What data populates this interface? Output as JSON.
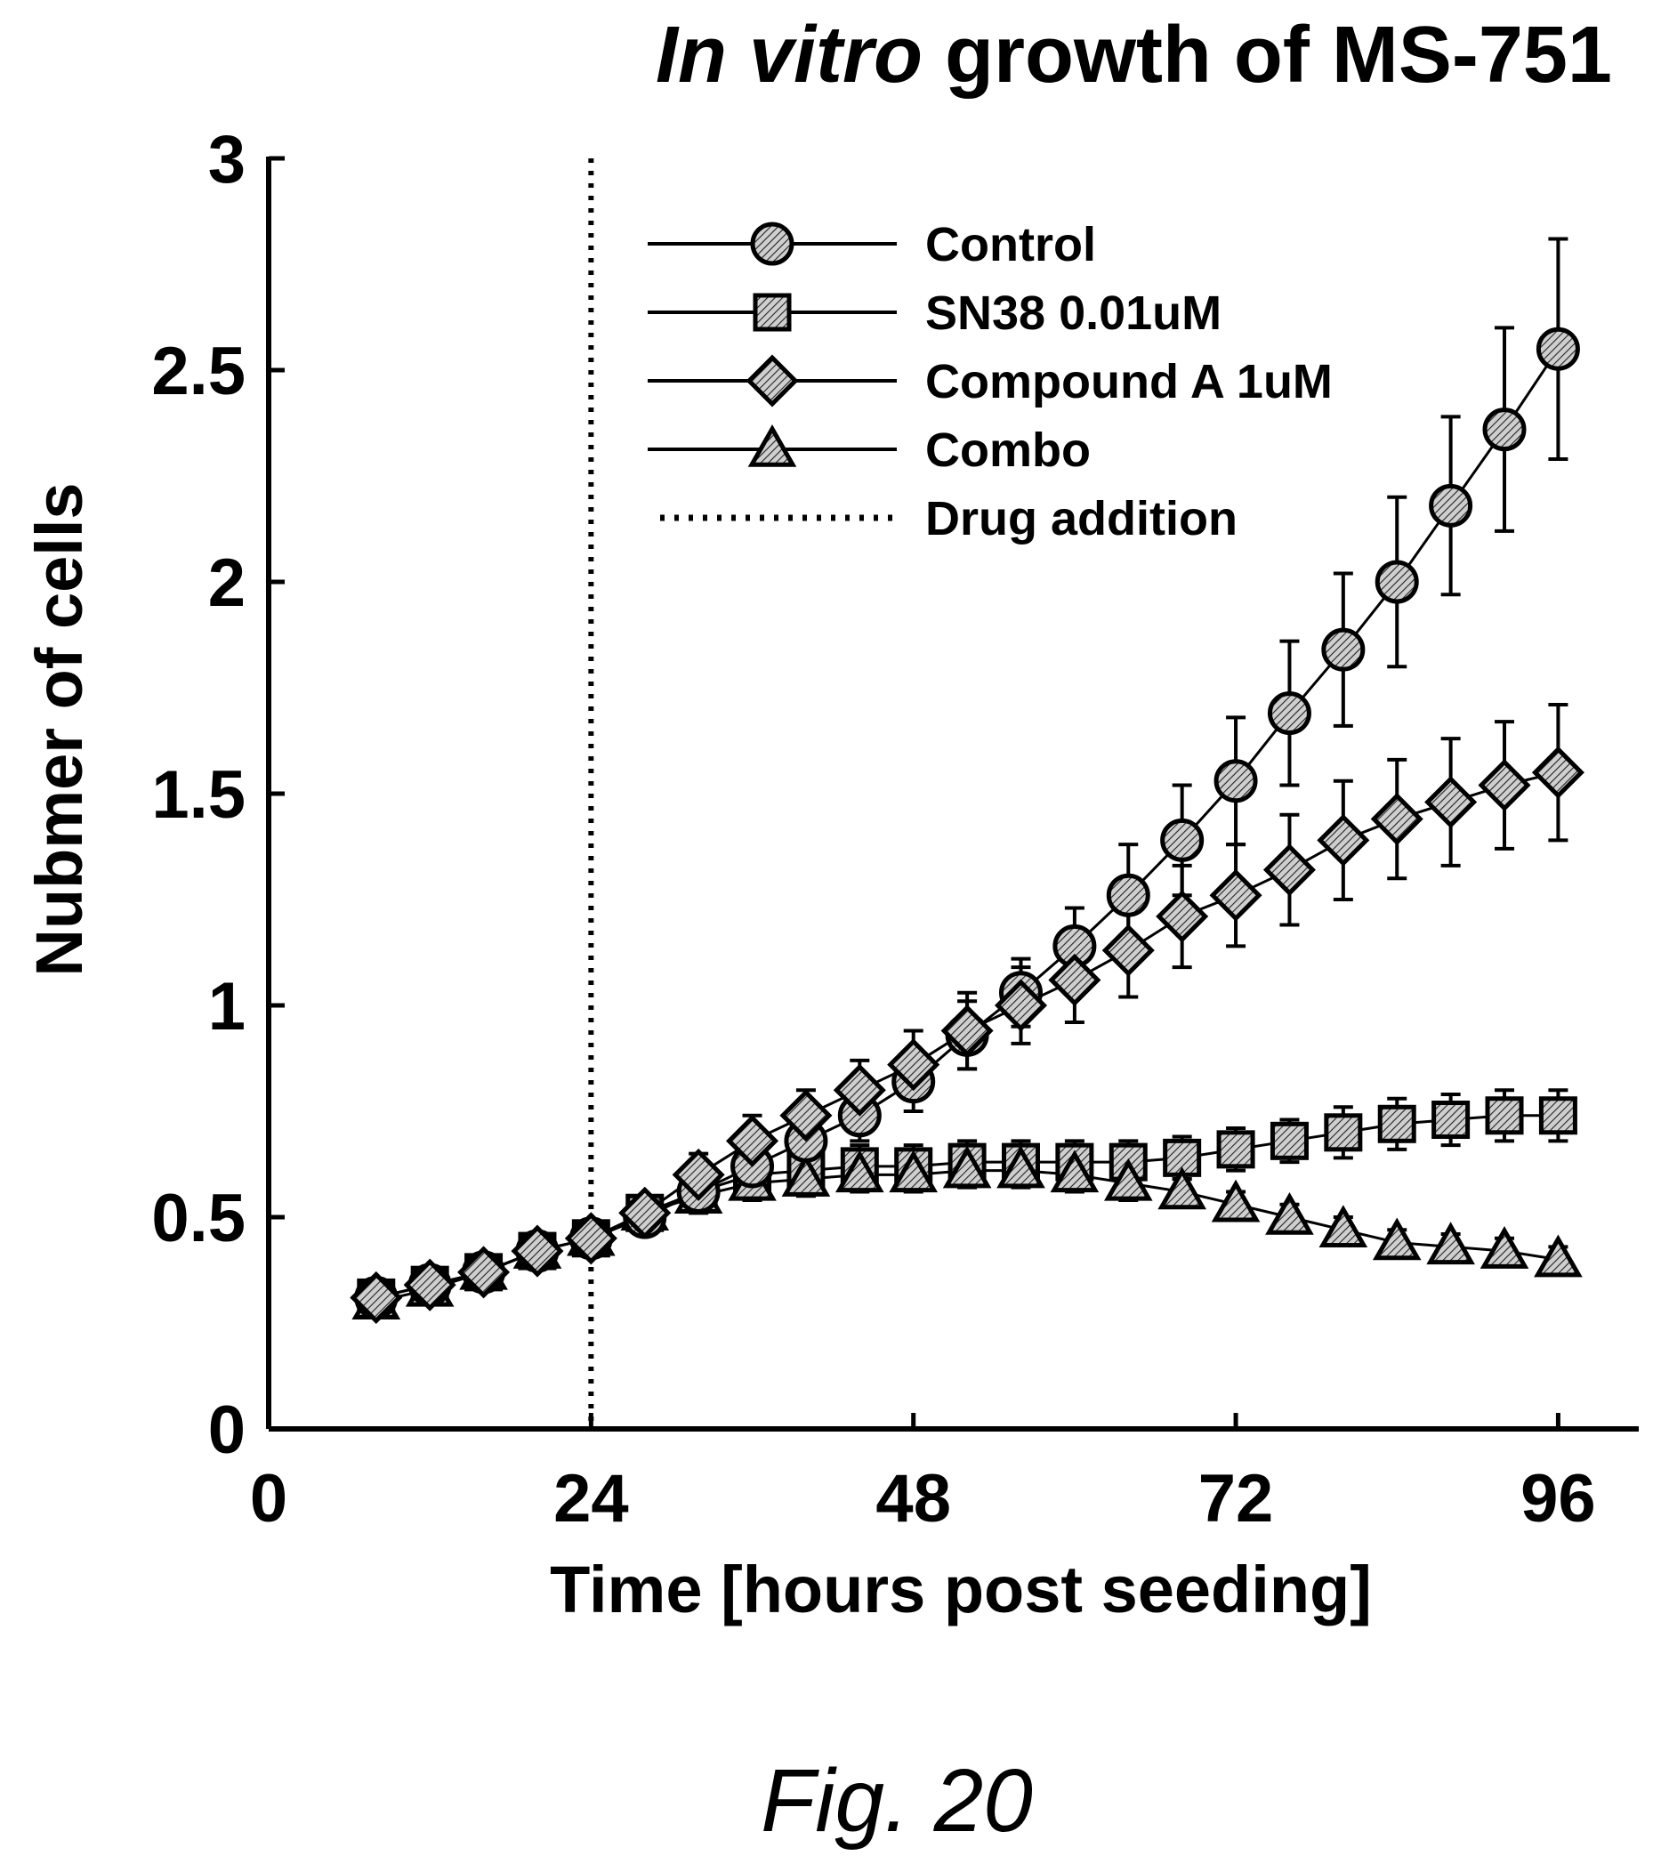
{
  "chart_data": {
    "type": "line",
    "title_italic": "In vitro",
    "title_rest": " growth of MS-751",
    "xlabel": "Time [hours post seeding]",
    "ylabel": "Nubmer of cells",
    "xlim": [
      0,
      102
    ],
    "ylim": [
      0,
      3
    ],
    "xticks": [
      0,
      24,
      48,
      72,
      96
    ],
    "yticks": [
      0,
      0.5,
      1,
      1.5,
      2,
      2.5,
      3
    ],
    "ytick_labels": [
      "0",
      "0.5",
      "1",
      "1.5",
      "2",
      "2.5",
      "3"
    ],
    "grid": false,
    "legend_position": "top-right",
    "x": [
      8,
      12,
      16,
      20,
      24,
      28,
      32,
      36,
      40,
      44,
      48,
      52,
      56,
      60,
      64,
      68,
      72,
      76,
      80,
      84,
      88,
      92,
      96
    ],
    "series": [
      {
        "name": "Control",
        "marker": "circle",
        "values": [
          0.31,
          0.34,
          0.37,
          0.42,
          0.45,
          0.5,
          0.56,
          0.62,
          0.68,
          0.74,
          0.82,
          0.93,
          1.03,
          1.14,
          1.26,
          1.39,
          1.53,
          1.69,
          1.84,
          2.0,
          2.18,
          2.36,
          2.55
        ],
        "errors": [
          0.02,
          0.02,
          0.02,
          0.03,
          0.03,
          0.04,
          0.05,
          0.05,
          0.06,
          0.06,
          0.07,
          0.08,
          0.08,
          0.09,
          0.12,
          0.13,
          0.15,
          0.17,
          0.18,
          0.2,
          0.21,
          0.24,
          0.26
        ]
      },
      {
        "name": "SN38 0.01uM",
        "marker": "square",
        "values": [
          0.31,
          0.34,
          0.37,
          0.42,
          0.45,
          0.51,
          0.56,
          0.6,
          0.61,
          0.62,
          0.62,
          0.63,
          0.63,
          0.63,
          0.63,
          0.64,
          0.66,
          0.68,
          0.7,
          0.72,
          0.73,
          0.74,
          0.74
        ],
        "errors": [
          0.02,
          0.02,
          0.02,
          0.03,
          0.03,
          0.04,
          0.04,
          0.05,
          0.05,
          0.05,
          0.05,
          0.05,
          0.05,
          0.05,
          0.05,
          0.05,
          0.05,
          0.05,
          0.06,
          0.06,
          0.06,
          0.06,
          0.06
        ]
      },
      {
        "name": "Compound A 1uM",
        "marker": "diamond",
        "values": [
          0.31,
          0.34,
          0.37,
          0.42,
          0.45,
          0.51,
          0.6,
          0.68,
          0.74,
          0.8,
          0.86,
          0.94,
          1.0,
          1.06,
          1.13,
          1.21,
          1.26,
          1.32,
          1.39,
          1.44,
          1.48,
          1.52,
          1.55
        ],
        "errors": [
          0.02,
          0.02,
          0.02,
          0.03,
          0.03,
          0.04,
          0.05,
          0.06,
          0.06,
          0.07,
          0.08,
          0.09,
          0.09,
          0.1,
          0.11,
          0.12,
          0.12,
          0.13,
          0.14,
          0.14,
          0.15,
          0.15,
          0.16
        ]
      },
      {
        "name": "Combo",
        "marker": "triangle",
        "values": [
          0.3,
          0.33,
          0.37,
          0.42,
          0.45,
          0.51,
          0.55,
          0.58,
          0.59,
          0.6,
          0.6,
          0.61,
          0.61,
          0.6,
          0.58,
          0.56,
          0.53,
          0.5,
          0.47,
          0.44,
          0.43,
          0.42,
          0.4
        ],
        "errors": [
          0.02,
          0.02,
          0.02,
          0.02,
          0.03,
          0.03,
          0.04,
          0.04,
          0.04,
          0.04,
          0.04,
          0.04,
          0.04,
          0.04,
          0.04,
          0.03,
          0.03,
          0.03,
          0.03,
          0.03,
          0.03,
          0.03,
          0.03
        ]
      }
    ],
    "vline": {
      "name": "Drug addition",
      "x": 24,
      "style": "dotted"
    }
  },
  "caption": "Fig. 20"
}
